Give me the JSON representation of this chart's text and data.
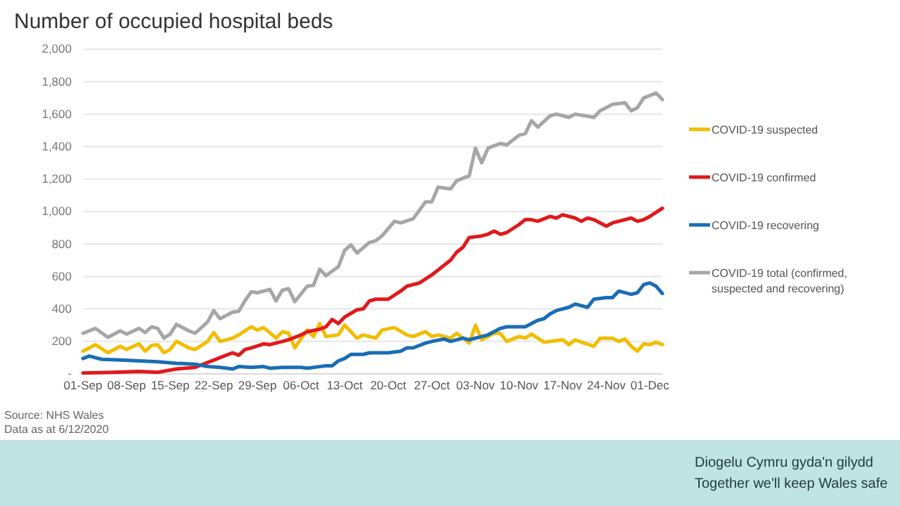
{
  "chart_data": {
    "type": "line",
    "title": "Number of occupied hospital beds",
    "xlim": [
      "2020-09-01",
      "2020-12-03"
    ],
    "xticks": [
      {
        "value": "2020-09-01",
        "label": "01-Sep"
      },
      {
        "value": "2020-09-08",
        "label": "08-Sep"
      },
      {
        "value": "2020-09-15",
        "label": "15-Sep"
      },
      {
        "value": "2020-09-22",
        "label": "22-Sep"
      },
      {
        "value": "2020-09-29",
        "label": "29-Sep"
      },
      {
        "value": "2020-10-06",
        "label": "06-Oct"
      },
      {
        "value": "2020-10-13",
        "label": "13-Oct"
      },
      {
        "value": "2020-10-20",
        "label": "20-Oct"
      },
      {
        "value": "2020-10-27",
        "label": "27-Oct"
      },
      {
        "value": "2020-11-03",
        "label": "03-Nov"
      },
      {
        "value": "2020-11-10",
        "label": "10-Nov"
      },
      {
        "value": "2020-11-17",
        "label": "17-Nov"
      },
      {
        "value": "2020-11-24",
        "label": "24-Nov"
      },
      {
        "value": "2020-12-01",
        "label": "01-Dec"
      }
    ],
    "ylim": [
      0,
      2000
    ],
    "yticks": [
      {
        "value": 0,
        "label": "-"
      },
      {
        "value": 200,
        "label": "200"
      },
      {
        "value": 400,
        "label": "400"
      },
      {
        "value": 600,
        "label": "600"
      },
      {
        "value": 800,
        "label": "800"
      },
      {
        "value": 1000,
        "label": "1,000"
      },
      {
        "value": 1200,
        "label": "1,200"
      },
      {
        "value": 1400,
        "label": "1,400"
      },
      {
        "value": 1600,
        "label": "1,600"
      },
      {
        "value": 1800,
        "label": "1,800"
      },
      {
        "value": 2000,
        "label": "2,000"
      }
    ],
    "grid": "y",
    "legend": "right",
    "marker": "none",
    "line_style": "solid",
    "series": [
      {
        "name": "COVID-19 suspected",
        "color": "#f2bd00",
        "x": [
          "2020-09-01",
          "2020-09-03",
          "2020-09-05",
          "2020-09-07",
          "2020-09-08",
          "2020-09-10",
          "2020-09-11",
          "2020-09-12",
          "2020-09-13",
          "2020-09-14",
          "2020-09-15",
          "2020-09-16",
          "2020-09-18",
          "2020-09-19",
          "2020-09-21",
          "2020-09-22",
          "2020-09-23",
          "2020-09-25",
          "2020-09-26",
          "2020-09-28",
          "2020-09-29",
          "2020-09-30",
          "2020-10-02",
          "2020-10-03",
          "2020-10-04",
          "2020-10-05",
          "2020-10-07",
          "2020-10-08",
          "2020-10-09",
          "2020-10-10",
          "2020-10-12",
          "2020-10-13",
          "2020-10-15",
          "2020-10-16",
          "2020-10-18",
          "2020-10-19",
          "2020-10-21",
          "2020-10-23",
          "2020-10-24",
          "2020-10-26",
          "2020-10-27",
          "2020-10-28",
          "2020-10-30",
          "2020-10-31",
          "2020-11-02",
          "2020-11-03",
          "2020-11-04",
          "2020-11-06",
          "2020-11-07",
          "2020-11-08",
          "2020-11-10",
          "2020-11-11",
          "2020-11-12",
          "2020-11-14",
          "2020-11-15",
          "2020-11-17",
          "2020-11-18",
          "2020-11-19",
          "2020-11-20",
          "2020-11-22",
          "2020-11-23",
          "2020-11-25",
          "2020-11-26",
          "2020-11-27",
          "2020-11-28",
          "2020-11-29",
          "2020-11-30",
          "2020-12-01",
          "2020-12-02",
          "2020-12-03"
        ],
        "values": [
          140,
          180,
          130,
          170,
          150,
          185,
          140,
          175,
          180,
          130,
          150,
          200,
          160,
          150,
          200,
          255,
          200,
          220,
          240,
          290,
          270,
          285,
          220,
          260,
          250,
          160,
          270,
          230,
          310,
          230,
          240,
          300,
          220,
          240,
          220,
          270,
          285,
          240,
          230,
          260,
          230,
          240,
          220,
          250,
          190,
          300,
          210,
          250,
          250,
          200,
          230,
          220,
          245,
          195,
          200,
          210,
          180,
          210,
          195,
          170,
          220,
          220,
          200,
          215,
          170,
          140,
          185,
          180,
          195,
          180
        ]
      },
      {
        "name": "COVID-19 confirmed",
        "color": "#e0191b",
        "x": [
          "2020-09-01",
          "2020-09-06",
          "2020-09-10",
          "2020-09-13",
          "2020-09-16",
          "2020-09-19",
          "2020-09-21",
          "2020-09-23",
          "2020-09-25",
          "2020-09-26",
          "2020-09-27",
          "2020-09-28",
          "2020-09-30",
          "2020-10-01",
          "2020-10-03",
          "2020-10-04",
          "2020-10-06",
          "2020-10-07",
          "2020-10-09",
          "2020-10-10",
          "2020-10-11",
          "2020-10-12",
          "2020-10-13",
          "2020-10-15",
          "2020-10-16",
          "2020-10-17",
          "2020-10-18",
          "2020-10-20",
          "2020-10-22",
          "2020-10-23",
          "2020-10-25",
          "2020-10-27",
          "2020-10-28",
          "2020-10-30",
          "2020-10-31",
          "2020-11-01",
          "2020-11-02",
          "2020-11-04",
          "2020-11-05",
          "2020-11-06",
          "2020-11-07",
          "2020-11-08",
          "2020-11-10",
          "2020-11-11",
          "2020-11-12",
          "2020-11-13",
          "2020-11-15",
          "2020-11-16",
          "2020-11-17",
          "2020-11-19",
          "2020-11-20",
          "2020-11-21",
          "2020-11-22",
          "2020-11-24",
          "2020-11-25",
          "2020-11-26",
          "2020-11-28",
          "2020-11-29",
          "2020-11-30",
          "2020-12-01",
          "2020-12-03"
        ],
        "values": [
          5,
          10,
          15,
          10,
          30,
          40,
          70,
          100,
          130,
          115,
          150,
          160,
          185,
          180,
          200,
          210,
          240,
          260,
          275,
          290,
          335,
          310,
          350,
          395,
          400,
          450,
          460,
          460,
          510,
          540,
          560,
          610,
          640,
          700,
          750,
          780,
          840,
          850,
          860,
          880,
          860,
          870,
          920,
          950,
          950,
          940,
          970,
          960,
          980,
          960,
          940,
          960,
          950,
          910,
          930,
          940,
          960,
          940,
          950,
          970,
          1020
        ]
      },
      {
        "name": "COVID-19 recovering",
        "color": "#1a6db5",
        "x": [
          "2020-09-01",
          "2020-09-02",
          "2020-09-04",
          "2020-09-07",
          "2020-09-10",
          "2020-09-13",
          "2020-09-16",
          "2020-09-19",
          "2020-09-21",
          "2020-09-23",
          "2020-09-25",
          "2020-09-26",
          "2020-09-28",
          "2020-09-30",
          "2020-10-01",
          "2020-10-03",
          "2020-10-06",
          "2020-10-07",
          "2020-10-09",
          "2020-10-10",
          "2020-10-11",
          "2020-10-12",
          "2020-10-13",
          "2020-10-14",
          "2020-10-16",
          "2020-10-17",
          "2020-10-20",
          "2020-10-22",
          "2020-10-23",
          "2020-10-24",
          "2020-10-26",
          "2020-10-27",
          "2020-10-29",
          "2020-10-30",
          "2020-11-01",
          "2020-11-02",
          "2020-11-04",
          "2020-11-05",
          "2020-11-07",
          "2020-11-08",
          "2020-11-11",
          "2020-11-13",
          "2020-11-14",
          "2020-11-15",
          "2020-11-16",
          "2020-11-18",
          "2020-11-19",
          "2020-11-21",
          "2020-11-22",
          "2020-11-24",
          "2020-11-25",
          "2020-11-26",
          "2020-11-28",
          "2020-11-29",
          "2020-11-30",
          "2020-12-01",
          "2020-12-02",
          "2020-12-03"
        ],
        "values": [
          95,
          110,
          90,
          85,
          80,
          75,
          65,
          60,
          45,
          40,
          30,
          45,
          40,
          45,
          35,
          40,
          40,
          35,
          45,
          50,
          50,
          80,
          95,
          120,
          120,
          130,
          130,
          140,
          160,
          160,
          190,
          200,
          215,
          200,
          220,
          210,
          230,
          240,
          280,
          290,
          290,
          330,
          340,
          370,
          390,
          410,
          430,
          410,
          460,
          470,
          470,
          510,
          490,
          500,
          550,
          560,
          540,
          495
        ]
      },
      {
        "name": "COVID-19 total (confirmed, suspected and recovering)",
        "color": "#a6a6a6",
        "x": [
          "2020-09-01",
          "2020-09-03",
          "2020-09-05",
          "2020-09-07",
          "2020-09-08",
          "2020-09-10",
          "2020-09-11",
          "2020-09-12",
          "2020-09-13",
          "2020-09-14",
          "2020-09-15",
          "2020-09-16",
          "2020-09-18",
          "2020-09-19",
          "2020-09-21",
          "2020-09-22",
          "2020-09-23",
          "2020-09-25",
          "2020-09-26",
          "2020-09-27",
          "2020-09-28",
          "2020-09-29",
          "2020-10-01",
          "2020-10-02",
          "2020-10-03",
          "2020-10-04",
          "2020-10-05",
          "2020-10-07",
          "2020-10-08",
          "2020-10-09",
          "2020-10-10",
          "2020-10-12",
          "2020-10-13",
          "2020-10-14",
          "2020-10-15",
          "2020-10-17",
          "2020-10-18",
          "2020-10-19",
          "2020-10-21",
          "2020-10-22",
          "2020-10-24",
          "2020-10-26",
          "2020-10-27",
          "2020-10-28",
          "2020-10-30",
          "2020-10-31",
          "2020-11-02",
          "2020-11-03",
          "2020-11-04",
          "2020-11-05",
          "2020-11-07",
          "2020-11-08",
          "2020-11-10",
          "2020-11-11",
          "2020-11-12",
          "2020-11-13",
          "2020-11-15",
          "2020-11-16",
          "2020-11-18",
          "2020-11-19",
          "2020-11-22",
          "2020-11-23",
          "2020-11-25",
          "2020-11-27",
          "2020-11-28",
          "2020-11-29",
          "2020-11-30",
          "2020-12-02",
          "2020-12-03"
        ],
        "values": [
          250,
          280,
          225,
          265,
          245,
          280,
          255,
          290,
          280,
          220,
          245,
          305,
          265,
          250,
          320,
          390,
          340,
          380,
          385,
          450,
          505,
          500,
          520,
          450,
          515,
          525,
          445,
          540,
          545,
          645,
          605,
          660,
          760,
          795,
          745,
          810,
          820,
          850,
          940,
          930,
          955,
          1060,
          1060,
          1150,
          1140,
          1190,
          1220,
          1390,
          1300,
          1390,
          1420,
          1410,
          1470,
          1480,
          1560,
          1520,
          1590,
          1600,
          1580,
          1600,
          1580,
          1620,
          1660,
          1670,
          1620,
          1640,
          1700,
          1730,
          1690
        ]
      }
    ],
    "annotations": [
      "Source: NHS Wales",
      "Data as at 6/12/2020",
      "Diogelu Cymru gyda'n gilydd",
      "Together we'll keep Wales safe"
    ]
  }
}
